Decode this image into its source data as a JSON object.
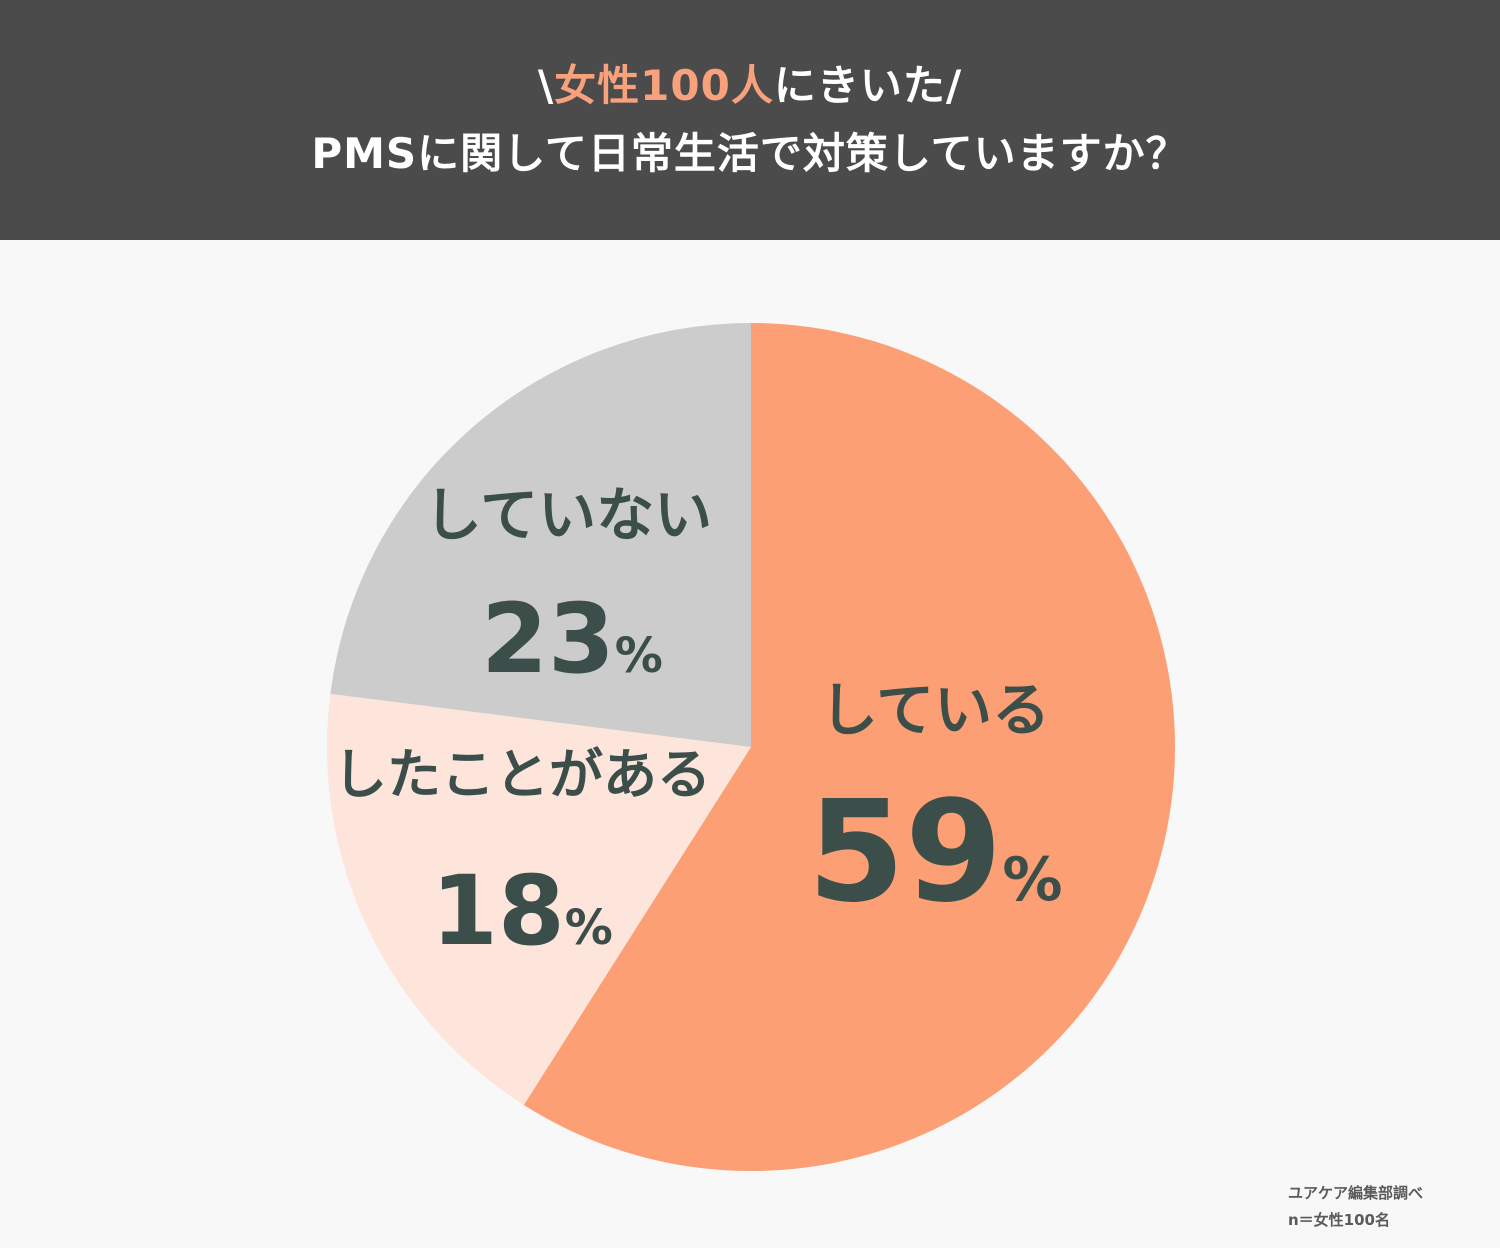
{
  "header": {
    "prefix": "\\",
    "highlight": "女性100人",
    "suffix": "にきいた/",
    "question": "PMSに関して日常生活で対策していますか？"
  },
  "chart_data": {
    "type": "pie",
    "unit": "%",
    "slices": [
      {
        "label": "している",
        "value": 59,
        "color": "#fc9f75"
      },
      {
        "label": "したことがある",
        "value": 18,
        "color": "#fee5dc"
      },
      {
        "label": "していない",
        "value": 23,
        "color": "#cccccc"
      }
    ],
    "label_color": "#3b4e4a"
  },
  "source": {
    "line1": "ユアケア編集部調べ",
    "line2": "n＝女性100名"
  }
}
